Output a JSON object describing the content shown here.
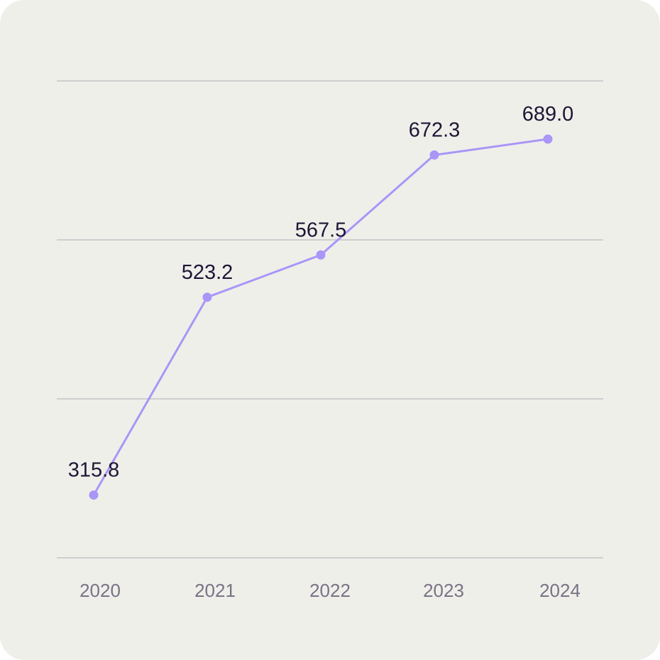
{
  "colors": {
    "card_background": "#efefea",
    "series": "#a996f7",
    "gridline": "#c4c3c6",
    "data_label": "#1f1535",
    "tick_label": "#7a7285"
  },
  "chart_data": {
    "type": "line",
    "title": "",
    "xlabel": "",
    "ylabel": "",
    "x": [
      "2020",
      "2021",
      "2022",
      "2023",
      "2024"
    ],
    "series": [
      {
        "values": [
          315.8,
          523.2,
          567.5,
          672.3,
          689.0
        ]
      }
    ],
    "data_labels": [
      "315.8",
      "523.2",
      "567.5",
      "672.3",
      "689.0"
    ],
    "ylim": [
      250,
      750
    ],
    "y_gridlines": [
      250,
      416.7,
      583.3,
      750
    ],
    "y_tick_labels_visible": false,
    "grid": true,
    "legend": "none",
    "markers": true
  }
}
